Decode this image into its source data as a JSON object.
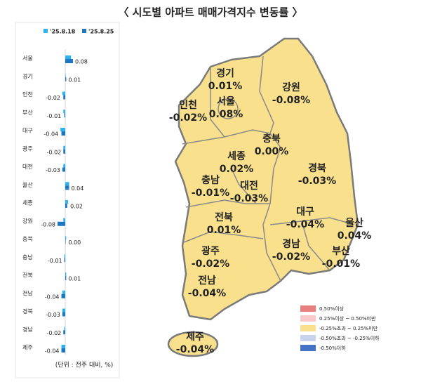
{
  "chart_data": [
    {
      "type": "hbar",
      "title": "〈 시도별 아파트 매매가격지수 변동률 〉",
      "categories": [
        "서울",
        "경기",
        "인천",
        "부산",
        "대구",
        "광주",
        "대전",
        "울산",
        "세종",
        "강원",
        "충북",
        "충남",
        "전북",
        "전남",
        "경북",
        "경남",
        "제주"
      ],
      "series": [
        {
          "name": "'25.8.18",
          "color": "#2fb3ee",
          "values": [
            0.06,
            0.0,
            -0.03,
            -0.02,
            -0.05,
            -0.02,
            -0.02,
            0.04,
            0.03,
            -0.02,
            0.01,
            -0.01,
            0.01,
            -0.03,
            -0.03,
            -0.01,
            -0.04
          ]
        },
        {
          "name": "'25.8.25",
          "color": "#1d77c2",
          "values": [
            0.08,
            0.01,
            -0.02,
            -0.01,
            -0.04,
            -0.02,
            -0.03,
            0.04,
            0.02,
            -0.08,
            0.0,
            -0.01,
            0.01,
            -0.04,
            -0.03,
            -0.02,
            -0.04
          ],
          "value_labels": [
            "0.08",
            "0.01",
            "-0.02",
            "-0.01",
            "-0.04",
            "-0.02",
            "-0.03",
            "0.04",
            "0.02",
            "-0.08",
            "0.00",
            "-0.01",
            "0.01",
            "-0.04",
            "-0.03",
            "-0.02",
            "-0.04"
          ]
        }
      ],
      "xlim": [
        -0.24,
        0.24
      ],
      "note": "(단위 : 전주 대비, %)"
    },
    {
      "type": "map",
      "color": "#f9e08c",
      "categories": [
        "경기",
        "강원",
        "인천",
        "서울",
        "충북",
        "세종",
        "경북",
        "충남",
        "대전",
        "전북",
        "대구",
        "울산",
        "경남",
        "광주",
        "부산",
        "전남",
        "제주"
      ],
      "values": [
        0.01,
        -0.08,
        -0.02,
        0.08,
        0.0,
        0.02,
        -0.03,
        -0.01,
        -0.03,
        0.01,
        -0.04,
        0.04,
        -0.02,
        -0.02,
        -0.01,
        -0.04,
        -0.04
      ],
      "value_labels": [
        "0.01%",
        "-0.08%",
        "-0.02%",
        "0.08%",
        "0.00%",
        "0.02%",
        "-0.03%",
        "-0.01%",
        "-0.03%",
        "0.01%",
        "-0.04%",
        "0.04%",
        "-0.02%",
        "-0.02%",
        "-0.01%",
        "-0.04%",
        "-0.04%"
      ],
      "legend": [
        {
          "label": "0.50%이상",
          "color": "#e98080"
        },
        {
          "label": "0.25%이상 ~ 0.50%미만",
          "color": "#f9c8c8"
        },
        {
          "label": "-0.25%초과 ~ 0.25%미만",
          "color": "#f9e08c"
        },
        {
          "label": "-0.50%초과 ~ -0.25%이하",
          "color": "#c8d4ee"
        },
        {
          "label": "-0.50%이하",
          "color": "#4472c4"
        }
      ]
    }
  ]
}
